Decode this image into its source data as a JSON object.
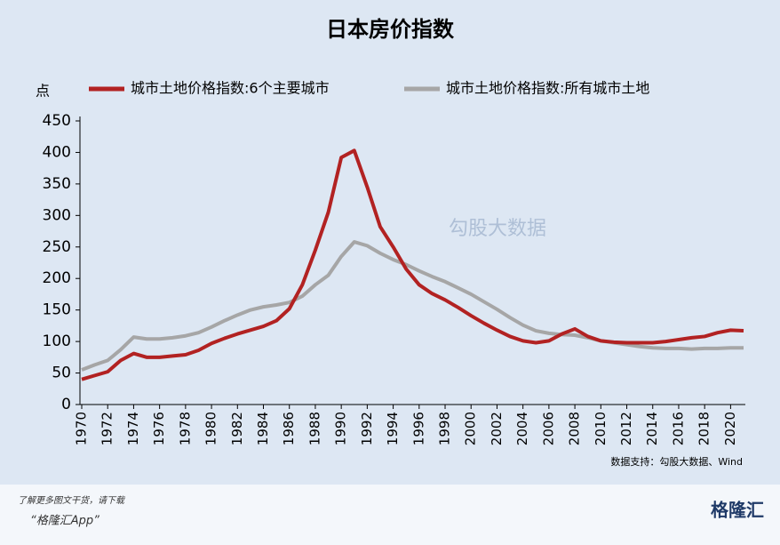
{
  "chart_data": {
    "type": "line",
    "title": "日本房价指数",
    "y_label": "点",
    "x": [
      1970,
      1971,
      1972,
      1973,
      1974,
      1975,
      1976,
      1977,
      1978,
      1979,
      1980,
      1981,
      1982,
      1983,
      1984,
      1985,
      1986,
      1987,
      1988,
      1989,
      1990,
      1991,
      1992,
      1993,
      1994,
      1995,
      1996,
      1997,
      1998,
      1999,
      2000,
      2001,
      2002,
      2003,
      2004,
      2005,
      2006,
      2007,
      2008,
      2009,
      2010,
      2011,
      2012,
      2013,
      2014,
      2015,
      2016,
      2017,
      2018,
      2019,
      2020,
      2021
    ],
    "series": [
      {
        "name": "城市土地价格指数:6个主要城市",
        "color": "#b22222",
        "values": [
          40,
          46,
          52,
          70,
          81,
          75,
          75,
          77,
          79,
          86,
          97,
          105,
          112,
          118,
          124,
          133,
          152,
          190,
          245,
          305,
          392,
          403,
          345,
          282,
          250,
          215,
          190,
          176,
          166,
          154,
          141,
          129,
          118,
          108,
          101,
          98,
          101,
          112,
          120,
          108,
          101,
          99,
          98,
          98,
          98,
          100,
          103,
          106,
          108,
          114,
          118,
          117
        ]
      },
      {
        "name": "城市土地价格指数:所有城市土地",
        "color": "#a6a6a6",
        "values": [
          55,
          63,
          70,
          87,
          107,
          104,
          104,
          106,
          109,
          114,
          123,
          133,
          142,
          150,
          155,
          158,
          162,
          172,
          190,
          205,
          235,
          258,
          252,
          240,
          230,
          222,
          212,
          203,
          195,
          185,
          175,
          163,
          151,
          138,
          126,
          117,
          113,
          111,
          110,
          106,
          101,
          98,
          95,
          92,
          90,
          89,
          89,
          88,
          89,
          89,
          90,
          90
        ]
      }
    ],
    "xlim": [
      1970,
      2021
    ],
    "xticks": [
      1970,
      1972,
      1974,
      1976,
      1978,
      1980,
      1982,
      1984,
      1986,
      1988,
      1990,
      1992,
      1994,
      1996,
      1998,
      2000,
      2002,
      2004,
      2006,
      2008,
      2010,
      2012,
      2014,
      2016,
      2018,
      2020
    ],
    "ylim": [
      0,
      450
    ],
    "yticks": [
      0,
      50,
      100,
      150,
      200,
      250,
      300,
      350,
      400,
      450
    ],
    "legend": "top",
    "source": "数据支持：勾股大数据、Wind"
  },
  "watermark": "勾股大数据",
  "footer": {
    "line1": "了解更多图文干货，请下载",
    "line2": "“格隆汇App”",
    "logo": "格隆汇"
  }
}
